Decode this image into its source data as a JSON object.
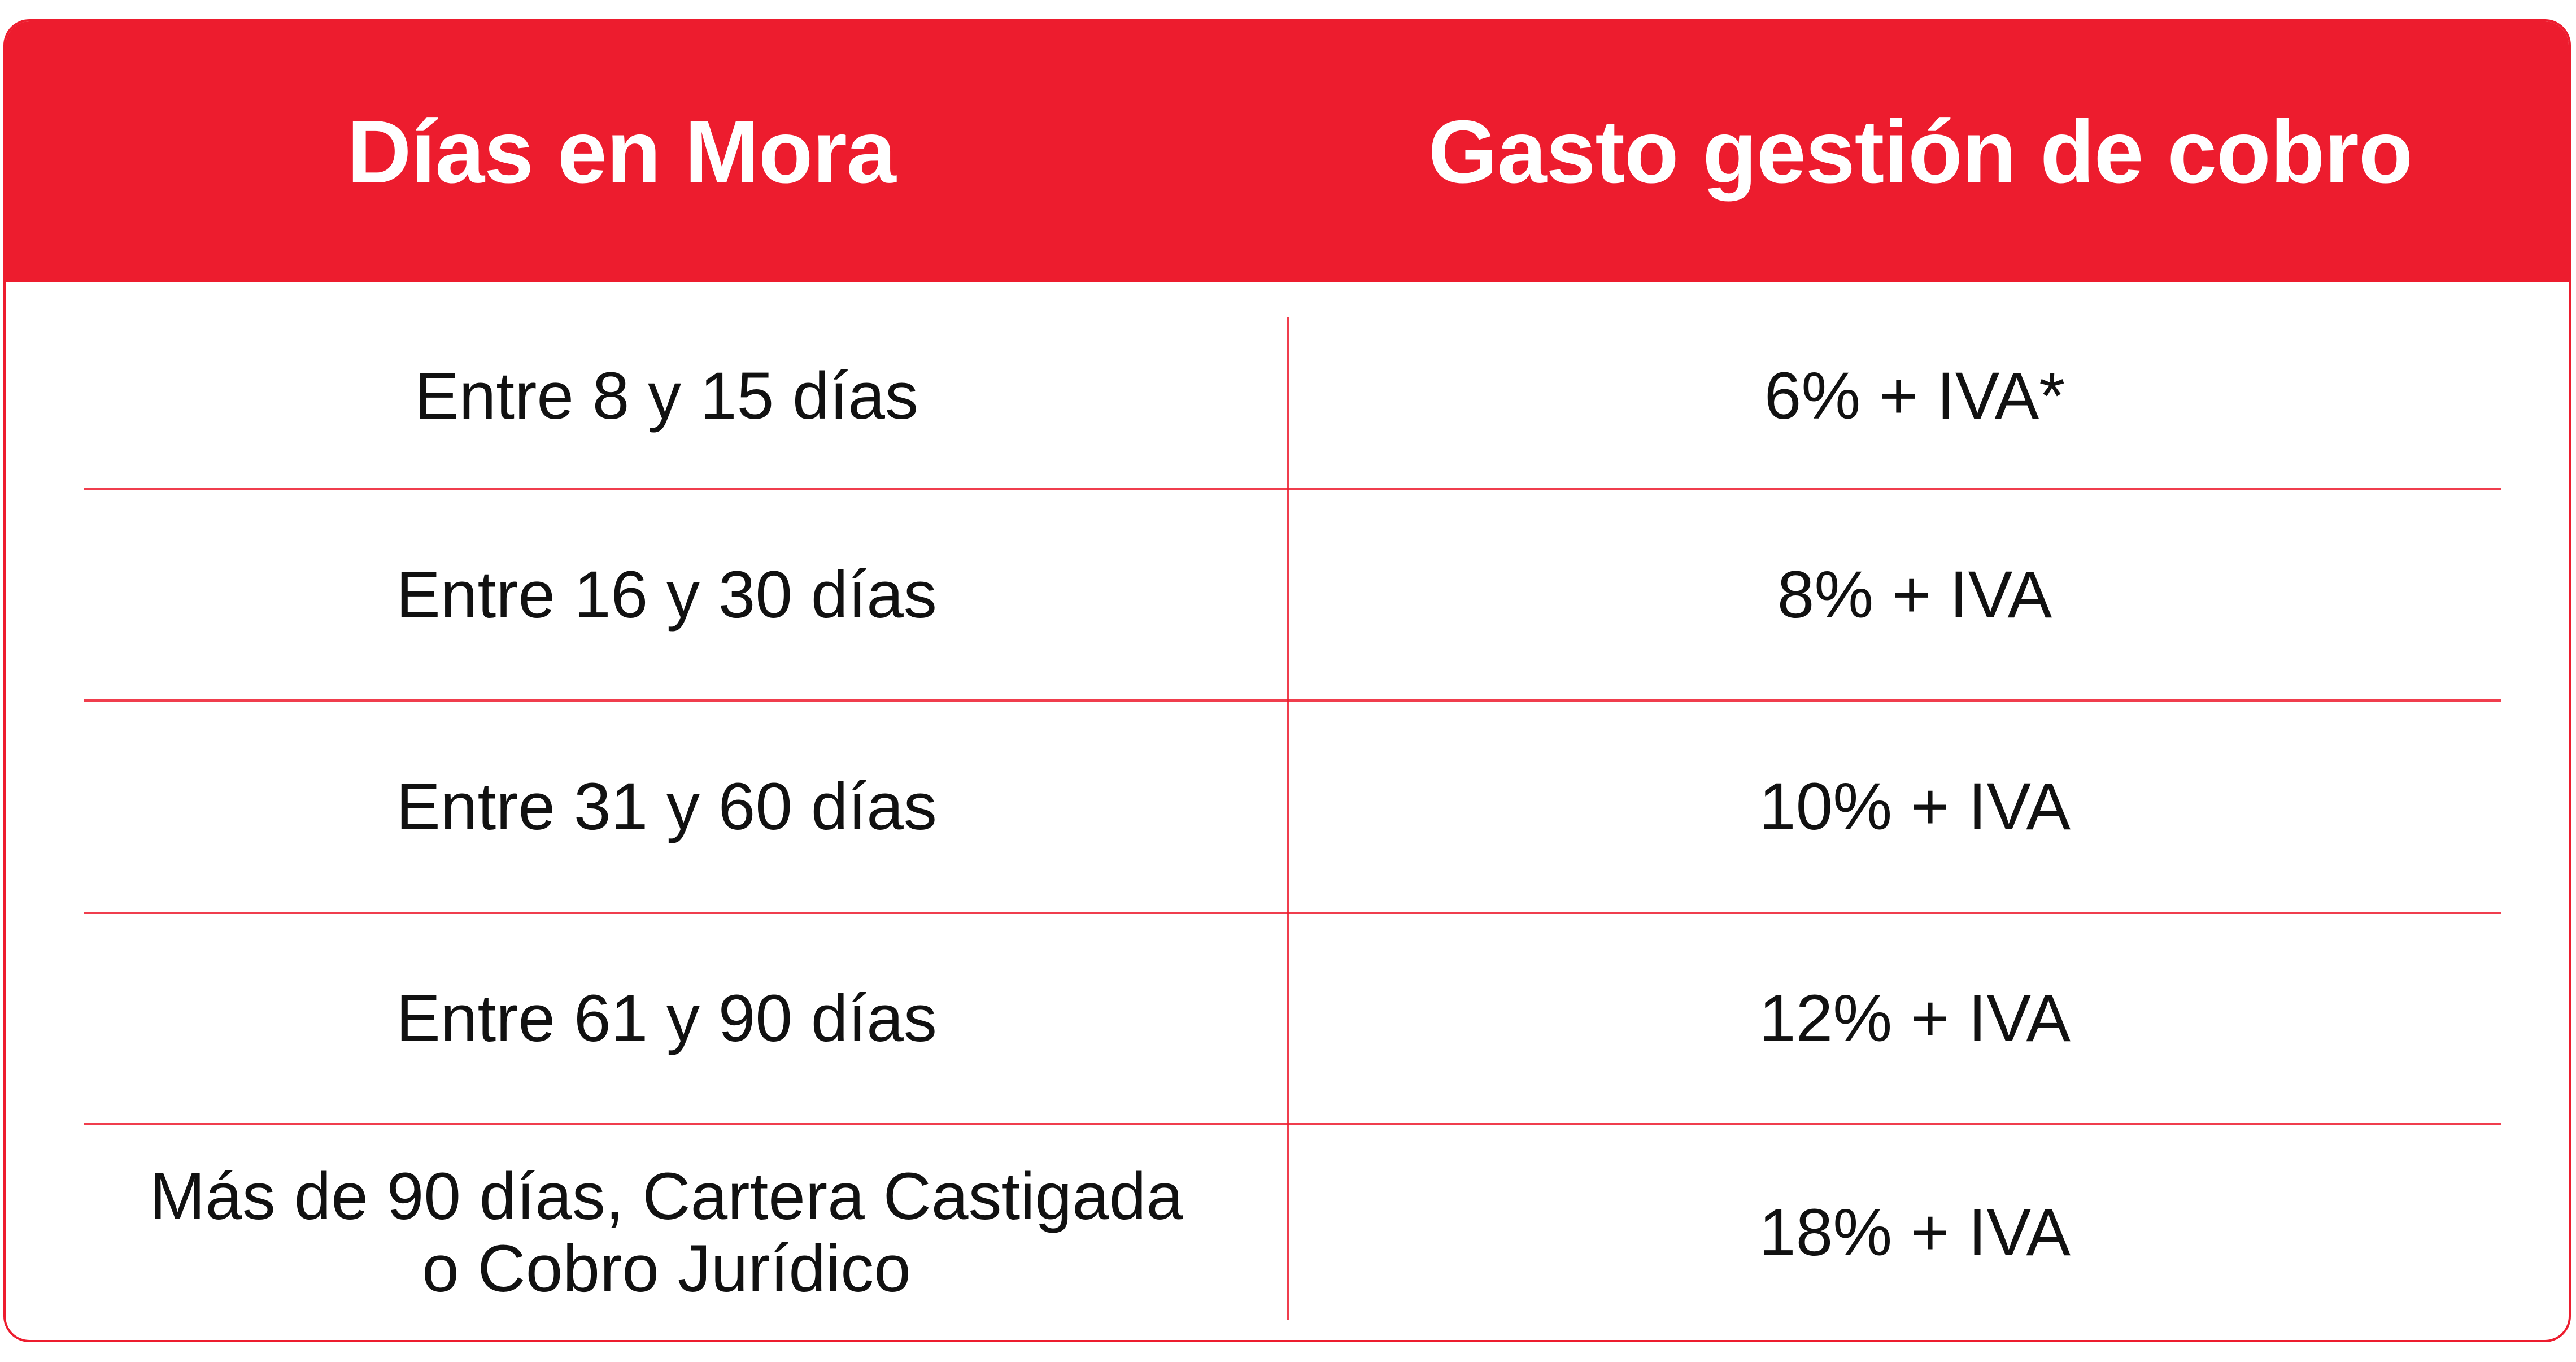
{
  "table": {
    "headers": {
      "days": "Días en Mora",
      "fee": "Gasto gestión de cobro"
    },
    "rows": [
      {
        "days": "Entre 8 y 15 días",
        "fee": "6% + IVA*"
      },
      {
        "days": "Entre 16 y 30 días",
        "fee": "8% + IVA"
      },
      {
        "days": "Entre 31 y 60 días",
        "fee": "10% + IVA"
      },
      {
        "days": "Entre 61 y 90 días",
        "fee": "12% + IVA"
      },
      {
        "days_line1": "Más de 90 días, Cartera Castigada",
        "days_line2": "o Cobro Jurídico",
        "fee": "18% + IVA"
      }
    ]
  },
  "colors": {
    "accent": "#ED1C2E",
    "text": "#111111",
    "header_text": "#FFFFFF"
  }
}
